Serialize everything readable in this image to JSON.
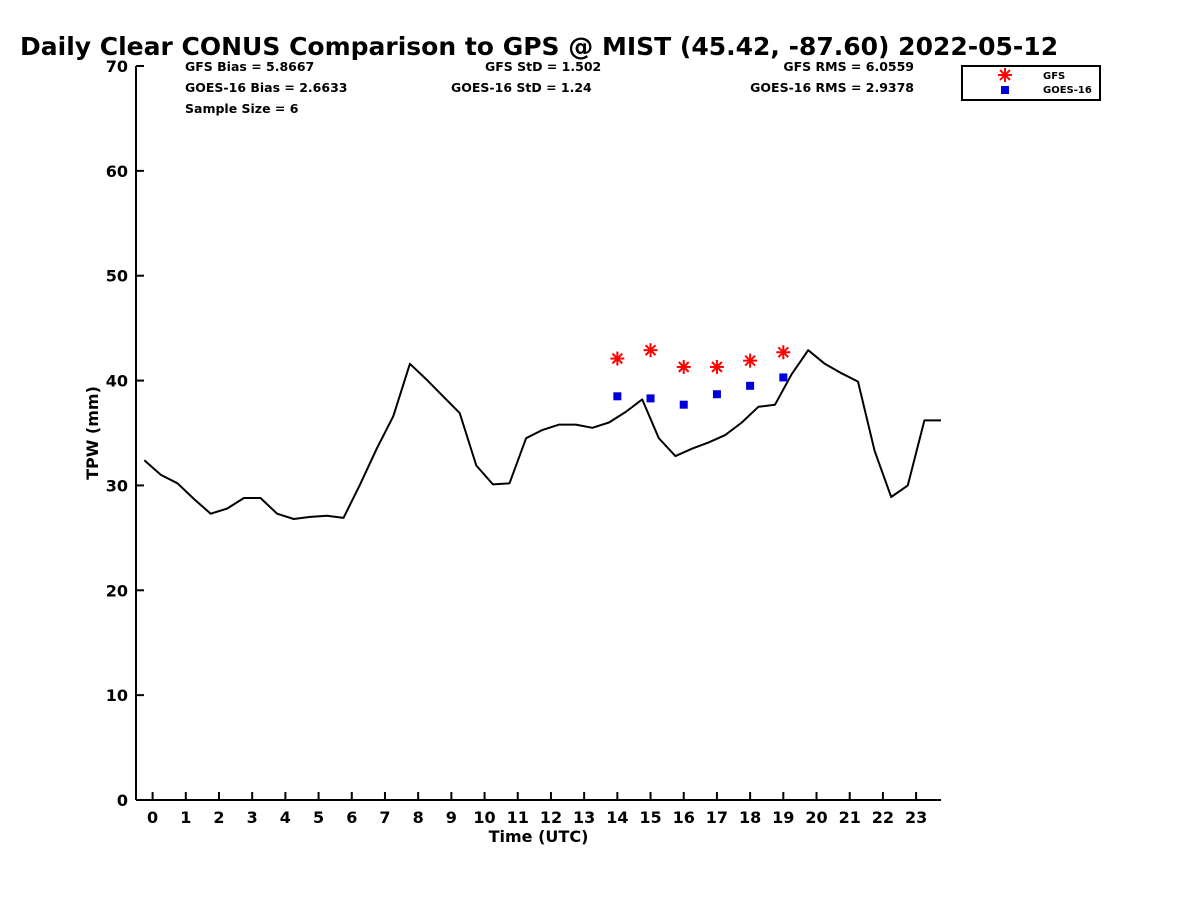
{
  "chart_data": {
    "type": "line",
    "title": "Daily Clear CONUS Comparison to GPS @ MIST (45.42, -87.60) 2022-05-12",
    "xlabel": "Time (UTC)",
    "ylabel": "TPW (mm)",
    "xlim": [
      -0.5,
      23.75
    ],
    "ylim": [
      0,
      70
    ],
    "xticks": [
      0,
      1,
      2,
      3,
      4,
      5,
      6,
      7,
      8,
      9,
      10,
      11,
      12,
      13,
      14,
      15,
      16,
      17,
      18,
      19,
      20,
      21,
      22,
      23
    ],
    "yticks": [
      0,
      10,
      20,
      30,
      40,
      50,
      60,
      70
    ],
    "stats": {
      "gfs_bias": "GFS Bias = 5.8667",
      "goes_bias": "GOES-16 Bias = 2.6633",
      "sample_size": "Sample Size = 6",
      "gfs_std": "GFS StD = 1.502",
      "goes_std": "GOES-16 StD = 1.24",
      "gfs_rms": "GFS RMS = 6.0559",
      "goes_rms": "GOES-16 RMS = 2.9378"
    },
    "legend": {
      "placement": "top-right",
      "entries": [
        "GFS",
        "GOES-16"
      ]
    },
    "colors": {
      "line": "#000000",
      "gfs": "#ff0000",
      "goes": "#0000dd"
    },
    "series": [
      {
        "style": "line",
        "x": [
          -0.25,
          0.25,
          0.75,
          1.25,
          1.75,
          2.25,
          2.75,
          3.25,
          3.75,
          4.25,
          4.75,
          5.25,
          5.75,
          6.25,
          6.75,
          7.25,
          7.75,
          8.25,
          8.75,
          9.25,
          9.75,
          10.25,
          10.75,
          11.25,
          11.75,
          12.25,
          12.75,
          13.25,
          13.75,
          14.25,
          14.75,
          15.25,
          15.75,
          16.25,
          16.75,
          17.25,
          17.75,
          18.25,
          18.75,
          19.25,
          19.75,
          20.25,
          20.75,
          21.25,
          21.75,
          22.25,
          22.75,
          23.25,
          23.75
        ],
        "y": [
          32.4,
          31.0,
          30.2,
          28.7,
          27.3,
          27.8,
          28.8,
          28.8,
          27.3,
          26.8,
          27.0,
          27.1,
          26.9,
          30.1,
          33.5,
          36.6,
          41.6,
          40.1,
          38.5,
          36.9,
          31.9,
          30.1,
          30.2,
          34.5,
          35.3,
          35.8,
          35.8,
          35.5,
          36.0,
          37.0,
          38.2,
          34.5,
          32.8,
          33.5,
          34.1,
          34.8,
          36.0,
          37.5,
          37.7,
          40.6,
          42.9,
          41.6,
          40.7,
          39.9,
          33.3,
          28.9,
          30.0,
          36.2,
          36.2
        ]
      },
      {
        "name": "GFS",
        "style": "asterisk",
        "x": [
          14,
          15,
          16,
          17,
          18,
          19
        ],
        "y": [
          42.1,
          42.9,
          41.3,
          41.3,
          41.9,
          42.7
        ]
      },
      {
        "name": "GOES-16",
        "style": "square",
        "x": [
          14,
          15,
          16,
          17,
          18,
          19
        ],
        "y": [
          38.5,
          38.3,
          37.7,
          38.7,
          39.5,
          40.3
        ]
      }
    ]
  }
}
